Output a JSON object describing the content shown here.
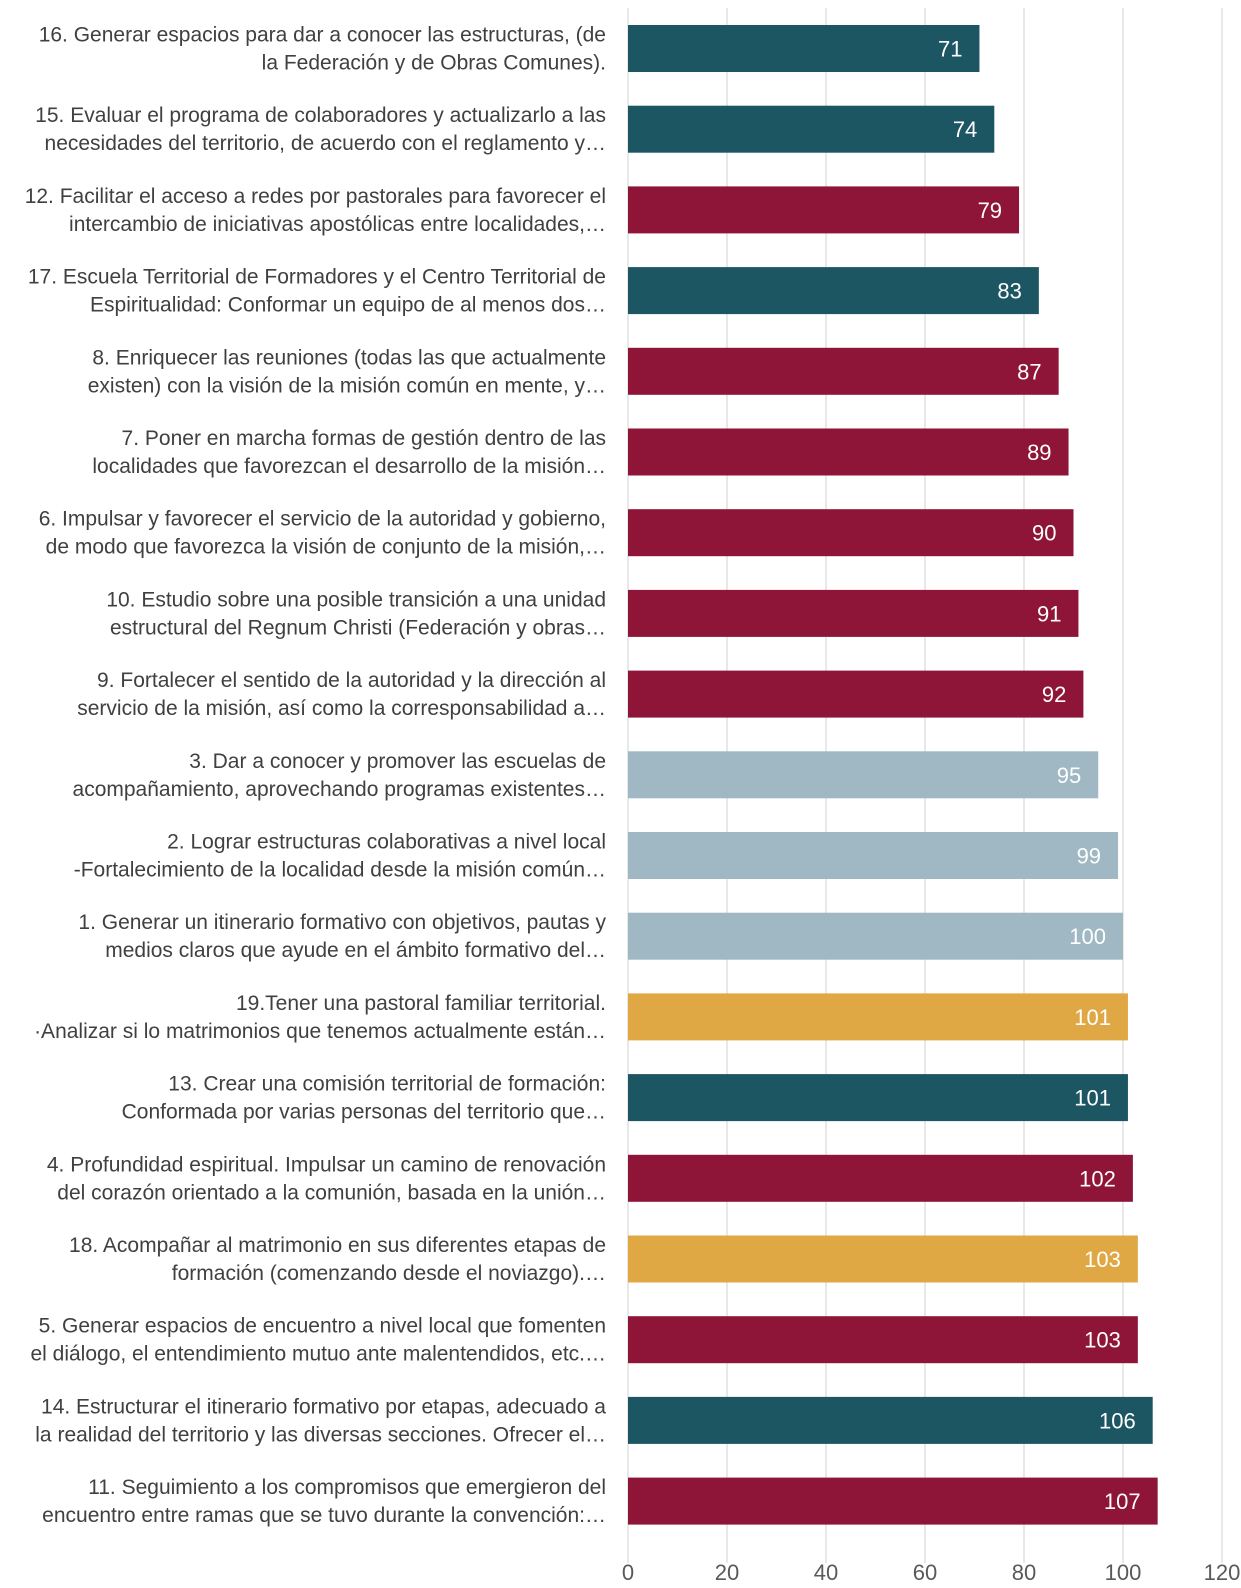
{
  "chart_data": {
    "type": "bar",
    "orientation": "horizontal",
    "title": "",
    "xlabel": "",
    "ylabel": "",
    "xlim": [
      0,
      120
    ],
    "x_ticks": [
      0,
      20,
      40,
      60,
      80,
      100,
      120
    ],
    "grid": "vertical",
    "legend": "none",
    "bars": [
      {
        "lines": [
          "16.  Generar espacios para dar a conocer las estructuras, (de",
          "la Federación y de Obras Comunes)."
        ],
        "value": 71,
        "color": "#1d5663"
      },
      {
        "lines": [
          "15. Evaluar el programa de colaboradores y actualizarlo a las",
          "necesidades del territorio, de acuerdo con el reglamento y…"
        ],
        "value": 74,
        "color": "#1d5663"
      },
      {
        "lines": [
          "12. Facilitar el acceso a redes por pastorales para favorecer el",
          "intercambio de iniciativas apostólicas entre localidades,…"
        ],
        "value": 79,
        "color": "#8e1537"
      },
      {
        "lines": [
          "17. Escuela Territorial de Formadores y el Centro Territorial de",
          "Espiritualidad: Conformar un equipo de al menos dos…"
        ],
        "value": 83,
        "color": "#1d5663"
      },
      {
        "lines": [
          "8. Enriquecer las reuniones (todas las que actualmente",
          "existen) con la visión de la misión común en mente, y…"
        ],
        "value": 87,
        "color": "#8e1537"
      },
      {
        "lines": [
          "7. Poner en marcha formas de gestión dentro de las",
          "localidades que favorezcan el desarrollo de la misión…"
        ],
        "value": 89,
        "color": "#8e1537"
      },
      {
        "lines": [
          "6. Impulsar y favorecer el servicio de la autoridad y gobierno,",
          "de modo que favorezca la visión de conjunto de la misión,…"
        ],
        "value": 90,
        "color": "#8e1537"
      },
      {
        "lines": [
          "10. Estudio sobre una posible transición a una unidad",
          "estructural del Regnum Christi (Federación y obras…"
        ],
        "value": 91,
        "color": "#8e1537"
      },
      {
        "lines": [
          "9. Fortalecer el sentido de la autoridad y la dirección al",
          "servicio de la misión, así como la corresponsabilidad a…"
        ],
        "value": 92,
        "color": "#8e1537"
      },
      {
        "lines": [
          "3. Dar a conocer y promover las escuelas de",
          "acompañamiento, aprovechando programas existentes…"
        ],
        "value": 95,
        "color": "#9fb8c4"
      },
      {
        "lines": [
          "2. Lograr estructuras colaborativas a nivel local",
          "-Fortalecimiento de la localidad desde la misión común…"
        ],
        "value": 99,
        "color": "#9fb8c4"
      },
      {
        "lines": [
          "1. Generar un itinerario formativo con objetivos, pautas y",
          "medios claros que ayude en el ámbito formativo del…"
        ],
        "value": 100,
        "color": "#9fb8c4"
      },
      {
        "lines": [
          "19.Tener una pastoral familiar territorial.",
          "·Analizar si lo matrimonios que tenemos actualmente están…"
        ],
        "value": 101,
        "color": "#e0a845"
      },
      {
        "lines": [
          "13. Crear una comisión territorial de formación:",
          "Conformada por varias personas del territorio que…"
        ],
        "value": 101,
        "color": "#1d5663"
      },
      {
        "lines": [
          "4. Profundidad espiritual. Impulsar un camino de renovación",
          "del corazón orientado a la comunión, basada en la unión…"
        ],
        "value": 102,
        "color": "#8e1537"
      },
      {
        "lines": [
          "18. Acompañar al matrimonio en sus diferentes etapas de",
          "formación (comenzando desde el noviazgo).…"
        ],
        "value": 103,
        "color": "#e0a845"
      },
      {
        "lines": [
          "5. Generar espacios de encuentro a nivel local que fomenten",
          "el diálogo, el entendimiento mutuo ante malentendidos, etc.…"
        ],
        "value": 103,
        "color": "#8e1537"
      },
      {
        "lines": [
          "14. Estructurar el itinerario formativo por etapas, adecuado a",
          "la realidad del territorio y las diversas secciones. Ofrecer el…"
        ],
        "value": 106,
        "color": "#1d5663"
      },
      {
        "lines": [
          "11. Seguimiento a los compromisos que emergieron del",
          "encuentro entre ramas que se tuvo durante la convención:…"
        ],
        "value": 107,
        "color": "#8e1537"
      }
    ]
  }
}
